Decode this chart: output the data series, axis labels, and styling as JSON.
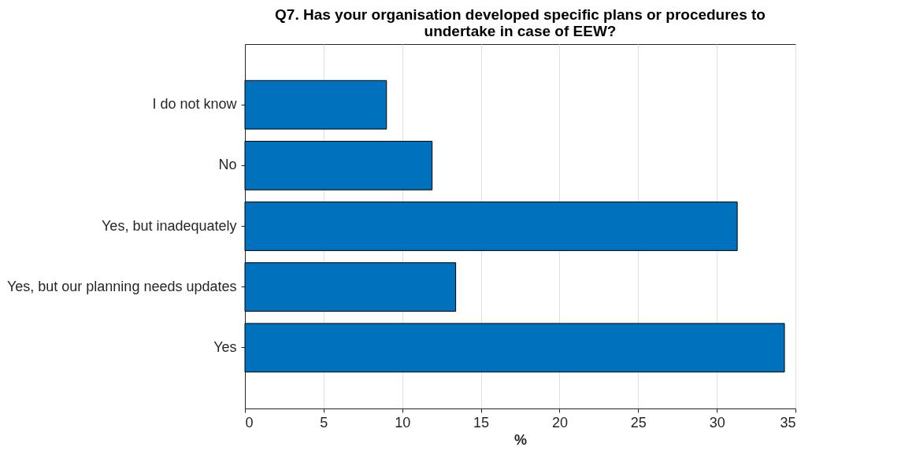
{
  "chart_data": {
    "type": "bar",
    "orientation": "horizontal",
    "title": "Q7. Has your organisation developed specific plans or procedures to\nundertake in case of EEW?",
    "xlabel": "%",
    "categories": [
      "I do not know",
      "No",
      "Yes, but inadequately",
      "Yes, but our planning needs updates",
      "Yes"
    ],
    "values": [
      9.0,
      11.9,
      31.3,
      13.4,
      34.3
    ],
    "color": "#0072bd",
    "xlim": [
      0,
      35
    ],
    "xticks": [
      0,
      5,
      10,
      15,
      20,
      25,
      30,
      35
    ],
    "grid": "x"
  }
}
